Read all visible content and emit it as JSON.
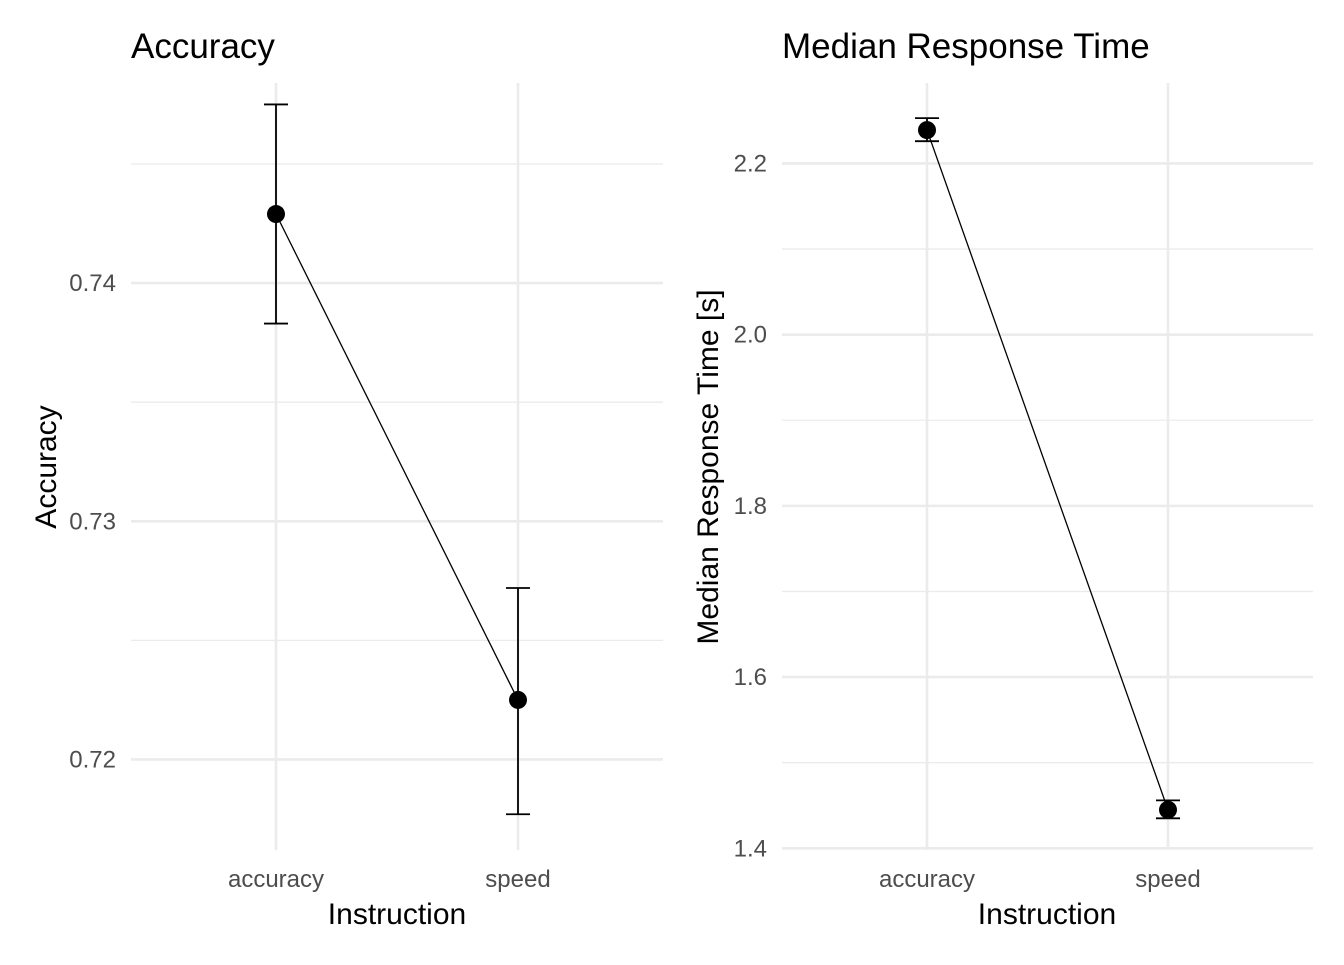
{
  "chart_data": [
    {
      "type": "line",
      "title": "Accuracy",
      "xlabel": "Instruction",
      "ylabel": "Accuracy",
      "categories": [
        "accuracy",
        "speed"
      ],
      "ylim": [
        0.7162,
        0.7484
      ],
      "yticks": [
        0.72,
        0.73,
        0.74
      ],
      "ytick_labels": [
        "0.72",
        "0.73",
        "0.74"
      ],
      "grid": true,
      "series": [
        {
          "values": [
            0.7429,
            0.7225
          ],
          "error_low": [
            0.7383,
            0.7177
          ],
          "error_high": [
            0.7475,
            0.7272
          ]
        }
      ]
    },
    {
      "type": "line",
      "title": "Median Response Time",
      "xlabel": "Instruction",
      "ylabel": "Median Response Time [s]",
      "categories": [
        "accuracy",
        "speed"
      ],
      "ylim": [
        1.398,
        2.294
      ],
      "yticks": [
        1.4,
        1.6,
        1.8,
        2.0,
        2.2
      ],
      "ytick_labels": [
        "1.4",
        "1.6",
        "1.8",
        "2.0",
        "2.2"
      ],
      "grid": true,
      "series": [
        {
          "values": [
            2.239,
            1.445
          ],
          "error_low": [
            2.226,
            1.435
          ],
          "error_high": [
            2.253,
            1.456
          ]
        }
      ]
    }
  ]
}
